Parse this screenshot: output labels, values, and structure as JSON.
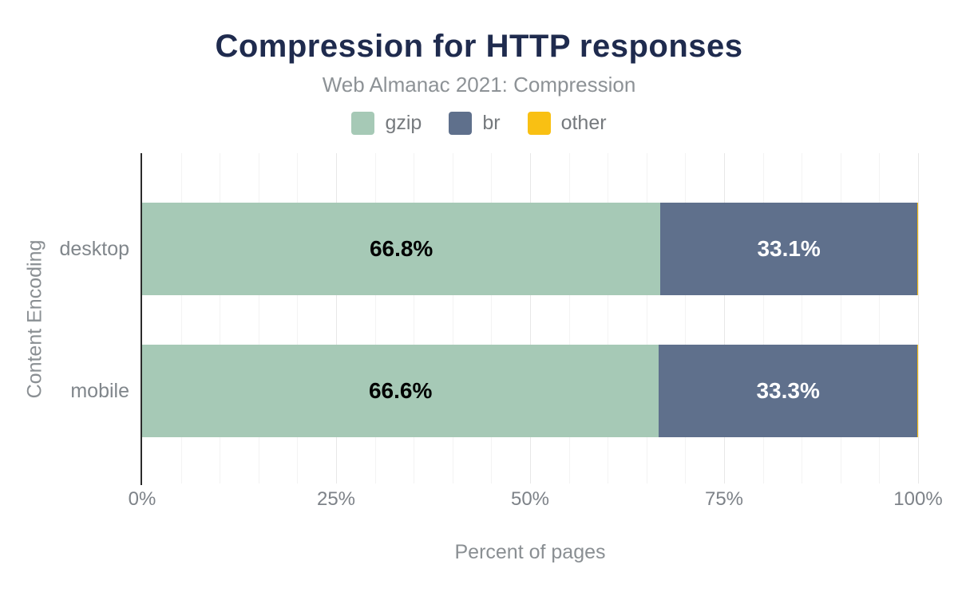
{
  "chart_data": {
    "type": "bar",
    "orientation": "horizontal-stacked",
    "title": "Compression for HTTP responses",
    "subtitle": "Web Almanac 2021: Compression",
    "xlabel": "Percent of pages",
    "ylabel": "Content Encoding",
    "categories": [
      "desktop",
      "mobile"
    ],
    "series": [
      {
        "name": "gzip",
        "color": "#a6c9b6",
        "label_color": "#000000",
        "values": [
          66.8,
          66.6
        ],
        "labels": [
          "66.8%",
          "66.6%"
        ]
      },
      {
        "name": "br",
        "color": "#5f708c",
        "label_color": "#ffffff",
        "values": [
          33.1,
          33.3
        ],
        "labels": [
          "33.1%",
          "33.3%"
        ]
      },
      {
        "name": "other",
        "color": "#f9c013",
        "label_color": "#000000",
        "values": [
          0.1,
          0.1
        ],
        "labels": [
          "",
          ""
        ]
      }
    ],
    "xlim": [
      0,
      100
    ],
    "x_ticks": [
      {
        "value": 0,
        "label": "0%"
      },
      {
        "value": 25,
        "label": "25%"
      },
      {
        "value": 50,
        "label": "50%"
      },
      {
        "value": 75,
        "label": "75%"
      },
      {
        "value": 100,
        "label": "100%"
      }
    ],
    "grid": {
      "show": true,
      "minor_step": 5,
      "major_step": 25
    },
    "legend_position": "top",
    "colors": {
      "title_text": "#1f2b4e",
      "subtitle_text": "#8d9296",
      "axis_text": "#80868b",
      "axis_line": "#2b2b2b"
    }
  }
}
